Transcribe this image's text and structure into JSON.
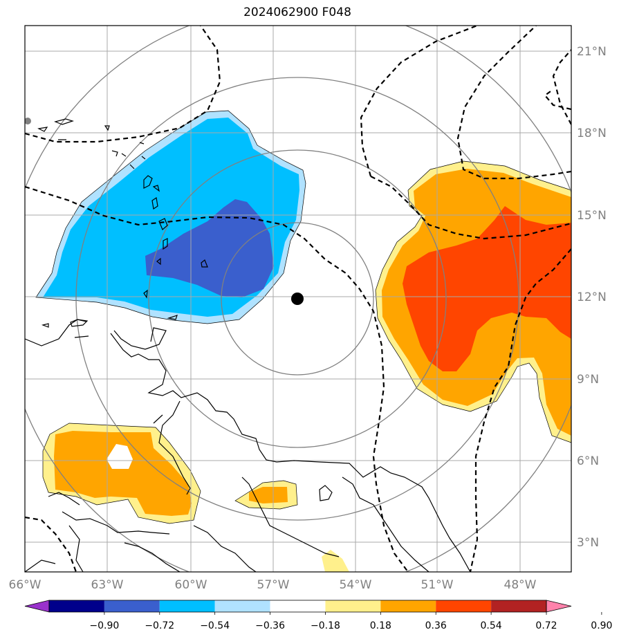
{
  "title": "2024062900 F048",
  "map": {
    "lon_labels": [
      "66°W",
      "63°W",
      "60°W",
      "57°W",
      "54°W",
      "51°W",
      "48°W"
    ],
    "lat_labels": [
      "21°N",
      "18°N",
      "15°N",
      "12°N",
      "9°N",
      "6°N",
      "3°N"
    ],
    "extent": {
      "lon_min": -66,
      "lon_max": -46.2,
      "lat_min": 2,
      "lat_max": 22
    },
    "center_marker": {
      "lon": -56.1,
      "lat": 11.9
    },
    "range_ring_colors": "#808080",
    "grid": true
  },
  "colorbar": {
    "tick_labels": [
      "−0.90",
      "−0.72",
      "−0.54",
      "−0.36",
      "−0.18",
      "0.18",
      "0.36",
      "0.54",
      "0.72",
      "0.90"
    ],
    "colors": [
      "#9932cc",
      "#00008b",
      "#3a5fcd",
      "#00bfff",
      "#b0e2ff",
      "#ffffff",
      "#fff08c",
      "#ffa500",
      "#ff4500",
      "#b22222",
      "#ff82ab"
    ],
    "extend": "both"
  }
}
